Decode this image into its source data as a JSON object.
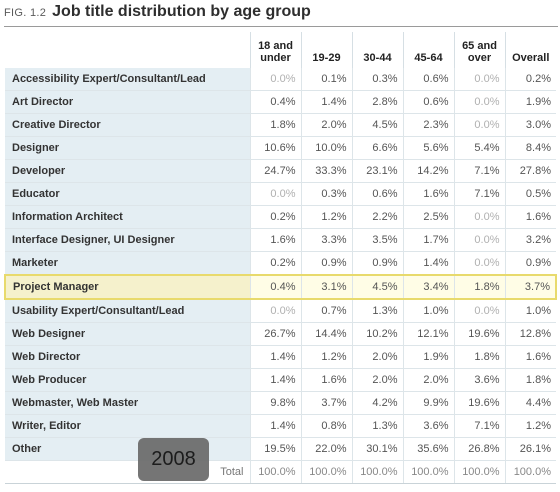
{
  "figure": {
    "label": "FIG. 1.2",
    "title": "Job title distribution by age group"
  },
  "table": {
    "columns": [
      "18 and\nunder",
      "19-29",
      "30-44",
      "45-64",
      "65 and\nover",
      "Overall"
    ],
    "highlight_row": "Project Manager",
    "rows": [
      {
        "name": "Accessibility Expert/Consultant/Lead",
        "values": [
          "0.0%",
          "0.1%",
          "0.3%",
          "0.6%",
          "0.0%",
          "0.2%"
        ]
      },
      {
        "name": "Art Director",
        "values": [
          "0.4%",
          "1.4%",
          "2.8%",
          "0.6%",
          "0.0%",
          "1.9%"
        ]
      },
      {
        "name": "Creative Director",
        "values": [
          "1.8%",
          "2.0%",
          "4.5%",
          "2.3%",
          "0.0%",
          "3.0%"
        ]
      },
      {
        "name": "Designer",
        "values": [
          "10.6%",
          "10.0%",
          "6.6%",
          "5.6%",
          "5.4%",
          "8.4%"
        ]
      },
      {
        "name": "Developer",
        "values": [
          "24.7%",
          "33.3%",
          "23.1%",
          "14.2%",
          "7.1%",
          "27.8%"
        ]
      },
      {
        "name": "Educator",
        "values": [
          "0.0%",
          "0.3%",
          "0.6%",
          "1.6%",
          "7.1%",
          "0.5%"
        ]
      },
      {
        "name": "Information Architect",
        "values": [
          "0.2%",
          "1.2%",
          "2.2%",
          "2.5%",
          "0.0%",
          "1.6%"
        ]
      },
      {
        "name": "Interface Designer, UI Designer",
        "values": [
          "1.6%",
          "3.3%",
          "3.5%",
          "1.7%",
          "0.0%",
          "3.2%"
        ]
      },
      {
        "name": "Marketer",
        "values": [
          "0.2%",
          "0.9%",
          "0.9%",
          "1.4%",
          "0.0%",
          "0.9%"
        ]
      },
      {
        "name": "Project Manager",
        "values": [
          "0.4%",
          "3.1%",
          "4.5%",
          "3.4%",
          "1.8%",
          "3.7%"
        ]
      },
      {
        "name": "Usability Expert/Consultant/Lead",
        "values": [
          "0.0%",
          "0.7%",
          "1.3%",
          "1.0%",
          "0.0%",
          "1.0%"
        ]
      },
      {
        "name": "Web Designer",
        "values": [
          "26.7%",
          "14.4%",
          "10.2%",
          "12.1%",
          "19.6%",
          "12.8%"
        ]
      },
      {
        "name": "Web Director",
        "values": [
          "1.4%",
          "1.2%",
          "2.0%",
          "1.9%",
          "1.8%",
          "1.6%"
        ]
      },
      {
        "name": "Web Producer",
        "values": [
          "1.4%",
          "1.6%",
          "2.0%",
          "2.0%",
          "3.6%",
          "1.8%"
        ]
      },
      {
        "name": "Webmaster, Web Master",
        "values": [
          "9.8%",
          "3.7%",
          "4.2%",
          "9.9%",
          "19.6%",
          "4.4%"
        ]
      },
      {
        "name": "Writer, Editor",
        "values": [
          "1.4%",
          "0.8%",
          "1.3%",
          "3.6%",
          "7.1%",
          "1.2%"
        ]
      },
      {
        "name": "Other",
        "values": [
          "19.5%",
          "22.0%",
          "30.1%",
          "35.6%",
          "26.8%",
          "26.1%"
        ]
      }
    ],
    "total": {
      "name": "Total",
      "values": [
        "100.0%",
        "100.0%",
        "100.0%",
        "100.0%",
        "100.0%",
        "100.0%"
      ]
    }
  },
  "badge": {
    "year": "2008"
  },
  "colors": {
    "row_label_bg": "#e4eef3",
    "highlight_border": "#e8da6c",
    "badge_bg": "#6e6e6e"
  }
}
